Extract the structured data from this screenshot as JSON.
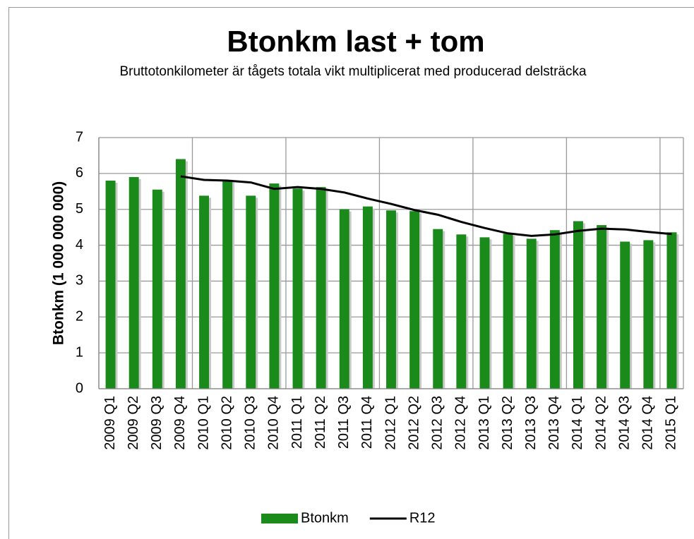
{
  "chart_data": {
    "type": "bar_line",
    "title": "Btonkm last + tom",
    "subtitle": "Bruttotonkilometer är tågets totala vikt multiplicerat med producerad delsträcka",
    "y_label": "Btonkm (1 000 000 000)",
    "categories": [
      "2009 Q1",
      "2009 Q2",
      "2009 Q3",
      "2009 Q4",
      "2010 Q1",
      "2010 Q2",
      "2010 Q3",
      "2010 Q4",
      "2011 Q1",
      "2011 Q2",
      "2011 Q3",
      "2011 Q4",
      "2012 Q1",
      "2012 Q2",
      "2012 Q3",
      "2012 Q4",
      "2013 Q1",
      "2013 Q2",
      "2013 Q3",
      "2013 Q4",
      "2014 Q1",
      "2014 Q2",
      "2014 Q3",
      "2014 Q4",
      "2015 Q1"
    ],
    "series": [
      {
        "name": "Btonkm",
        "type": "bar",
        "color": "#1a8a1a",
        "values": [
          5.8,
          5.9,
          5.55,
          6.4,
          5.38,
          5.82,
          5.38,
          5.72,
          5.58,
          5.62,
          5.0,
          5.08,
          4.97,
          4.95,
          4.45,
          4.3,
          4.22,
          4.32,
          4.18,
          4.42,
          4.67,
          4.56,
          4.1,
          4.14,
          4.36
        ]
      },
      {
        "name": "R12",
        "type": "line",
        "color": "#000000",
        "values": [
          null,
          null,
          null,
          5.92,
          5.82,
          5.8,
          5.75,
          5.57,
          5.62,
          5.57,
          5.47,
          5.3,
          5.15,
          4.98,
          4.85,
          4.65,
          4.48,
          4.33,
          4.26,
          4.3,
          4.4,
          4.46,
          4.44,
          4.37,
          4.31
        ]
      }
    ],
    "ylim": [
      0,
      7
    ],
    "yticks": [
      0,
      1,
      2,
      3,
      4,
      5,
      6,
      7
    ],
    "grid": true,
    "legend": "bottom"
  }
}
